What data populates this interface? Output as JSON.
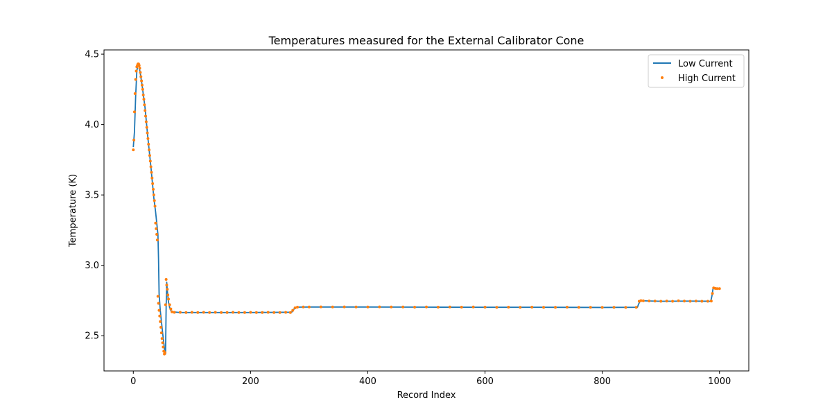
{
  "chart_data": {
    "type": "line",
    "title": "Temperatures measured for the External Calibrator Cone",
    "xlabel": "Record Index",
    "ylabel": "Temperature (K)",
    "xlim": [
      -50,
      1050
    ],
    "ylim": [
      2.25,
      4.53
    ],
    "xticks": [
      0,
      200,
      400,
      600,
      800,
      1000
    ],
    "yticks": [
      2.5,
      3.0,
      3.5,
      4.0,
      4.5
    ],
    "xtick_labels": [
      "0",
      "200",
      "400",
      "600",
      "800",
      "1000"
    ],
    "ytick_labels": [
      "2.5",
      "3.0",
      "3.5",
      "4.0",
      "4.5"
    ],
    "grid": false,
    "legend_position": "top-right",
    "series": [
      {
        "name": "Low Current",
        "style": "line",
        "color": "#1f77b4",
        "points": [
          [
            0,
            3.84
          ],
          [
            2,
            3.95
          ],
          [
            4,
            4.2
          ],
          [
            6,
            4.38
          ],
          [
            8,
            4.43
          ],
          [
            10,
            4.41
          ],
          [
            12,
            4.36
          ],
          [
            15,
            4.28
          ],
          [
            20,
            4.12
          ],
          [
            25,
            3.9
          ],
          [
            30,
            3.7
          ],
          [
            35,
            3.48
          ],
          [
            38,
            3.38
          ],
          [
            40,
            3.3
          ],
          [
            42,
            3.22
          ],
          [
            43,
            3.05
          ],
          [
            44,
            2.8
          ],
          [
            46,
            2.68
          ],
          [
            48,
            2.6
          ],
          [
            50,
            2.52
          ],
          [
            52,
            2.45
          ],
          [
            54,
            2.38
          ],
          [
            55,
            2.37
          ],
          [
            56,
            2.7
          ],
          [
            57,
            2.88
          ],
          [
            58,
            2.82
          ],
          [
            60,
            2.74
          ],
          [
            62,
            2.7
          ],
          [
            65,
            2.67
          ],
          [
            80,
            2.665
          ],
          [
            150,
            2.665
          ],
          [
            200,
            2.665
          ],
          [
            270,
            2.667
          ],
          [
            272,
            2.675
          ],
          [
            275,
            2.695
          ],
          [
            280,
            2.703
          ],
          [
            300,
            2.704
          ],
          [
            400,
            2.704
          ],
          [
            500,
            2.703
          ],
          [
            600,
            2.702
          ],
          [
            700,
            2.702
          ],
          [
            800,
            2.701
          ],
          [
            860,
            2.702
          ],
          [
            862,
            2.725
          ],
          [
            865,
            2.748
          ],
          [
            870,
            2.748
          ],
          [
            900,
            2.745
          ],
          [
            950,
            2.746
          ],
          [
            985,
            2.745
          ],
          [
            987,
            2.78
          ],
          [
            989,
            2.835
          ],
          [
            992,
            2.836
          ],
          [
            1000,
            2.835
          ]
        ]
      },
      {
        "name": "High Current",
        "style": "scatter",
        "color": "#ff7f0e",
        "points": [
          [
            0,
            3.82
          ],
          [
            1,
            3.89
          ],
          [
            2,
            4.09
          ],
          [
            3,
            4.22
          ],
          [
            4,
            4.32
          ],
          [
            5,
            4.38
          ],
          [
            6,
            4.41
          ],
          [
            7,
            4.42
          ],
          [
            8,
            4.43
          ],
          [
            9,
            4.43
          ],
          [
            10,
            4.42
          ],
          [
            11,
            4.4
          ],
          [
            12,
            4.37
          ],
          [
            13,
            4.34
          ],
          [
            14,
            4.31
          ],
          [
            15,
            4.28
          ],
          [
            16,
            4.25
          ],
          [
            17,
            4.21
          ],
          [
            18,
            4.18
          ],
          [
            19,
            4.14
          ],
          [
            20,
            4.1
          ],
          [
            21,
            4.06
          ],
          [
            22,
            4.02
          ],
          [
            23,
            3.98
          ],
          [
            24,
            3.94
          ],
          [
            25,
            3.9
          ],
          [
            26,
            3.86
          ],
          [
            27,
            3.82
          ],
          [
            28,
            3.78
          ],
          [
            29,
            3.74
          ],
          [
            30,
            3.7
          ],
          [
            31,
            3.66
          ],
          [
            32,
            3.62
          ],
          [
            33,
            3.58
          ],
          [
            34,
            3.54
          ],
          [
            35,
            3.5
          ],
          [
            36,
            3.46
          ],
          [
            37,
            3.42
          ],
          [
            38,
            3.3
          ],
          [
            39,
            3.26
          ],
          [
            40,
            3.22
          ],
          [
            41,
            3.18
          ],
          [
            42,
            2.78
          ],
          [
            43,
            2.73
          ],
          [
            44,
            2.68
          ],
          [
            45,
            2.64
          ],
          [
            46,
            2.6
          ],
          [
            47,
            2.56
          ],
          [
            48,
            2.52
          ],
          [
            49,
            2.48
          ],
          [
            50,
            2.45
          ],
          [
            51,
            2.42
          ],
          [
            52,
            2.39
          ],
          [
            53,
            2.37
          ],
          [
            54,
            2.38
          ],
          [
            55,
            2.72
          ],
          [
            56,
            2.9
          ],
          [
            57,
            2.86
          ],
          [
            58,
            2.83
          ],
          [
            59,
            2.79
          ],
          [
            60,
            2.76
          ],
          [
            62,
            2.72
          ],
          [
            64,
            2.69
          ],
          [
            66,
            2.67
          ],
          [
            70,
            2.666
          ],
          [
            80,
            2.666
          ],
          [
            90,
            2.665
          ],
          [
            100,
            2.666
          ],
          [
            110,
            2.665
          ],
          [
            120,
            2.666
          ],
          [
            130,
            2.665
          ],
          [
            140,
            2.666
          ],
          [
            150,
            2.665
          ],
          [
            160,
            2.665
          ],
          [
            170,
            2.666
          ],
          [
            180,
            2.665
          ],
          [
            190,
            2.665
          ],
          [
            200,
            2.666
          ],
          [
            210,
            2.665
          ],
          [
            220,
            2.665
          ],
          [
            230,
            2.666
          ],
          [
            240,
            2.665
          ],
          [
            250,
            2.665
          ],
          [
            260,
            2.666
          ],
          [
            268,
            2.665
          ],
          [
            272,
            2.68
          ],
          [
            276,
            2.698
          ],
          [
            280,
            2.703
          ],
          [
            290,
            2.704
          ],
          [
            300,
            2.704
          ],
          [
            320,
            2.705
          ],
          [
            340,
            2.704
          ],
          [
            360,
            2.705
          ],
          [
            380,
            2.704
          ],
          [
            400,
            2.704
          ],
          [
            420,
            2.705
          ],
          [
            440,
            2.704
          ],
          [
            460,
            2.704
          ],
          [
            480,
            2.703
          ],
          [
            500,
            2.704
          ],
          [
            520,
            2.703
          ],
          [
            540,
            2.704
          ],
          [
            560,
            2.703
          ],
          [
            580,
            2.704
          ],
          [
            600,
            2.703
          ],
          [
            620,
            2.702
          ],
          [
            640,
            2.703
          ],
          [
            660,
            2.702
          ],
          [
            680,
            2.703
          ],
          [
            700,
            2.702
          ],
          [
            720,
            2.702
          ],
          [
            740,
            2.703
          ],
          [
            760,
            2.702
          ],
          [
            780,
            2.702
          ],
          [
            800,
            2.701
          ],
          [
            820,
            2.702
          ],
          [
            840,
            2.701
          ],
          [
            858,
            2.702
          ],
          [
            863,
            2.745
          ],
          [
            866,
            2.749
          ],
          [
            870,
            2.748
          ],
          [
            880,
            2.747
          ],
          [
            890,
            2.746
          ],
          [
            900,
            2.745
          ],
          [
            910,
            2.746
          ],
          [
            920,
            2.745
          ],
          [
            930,
            2.748
          ],
          [
            940,
            2.746
          ],
          [
            950,
            2.745
          ],
          [
            960,
            2.746
          ],
          [
            970,
            2.745
          ],
          [
            980,
            2.745
          ],
          [
            986,
            2.746
          ],
          [
            988,
            2.8
          ],
          [
            990,
            2.84
          ],
          [
            993,
            2.836
          ],
          [
            996,
            2.835
          ],
          [
            1000,
            2.835
          ]
        ]
      }
    ]
  }
}
